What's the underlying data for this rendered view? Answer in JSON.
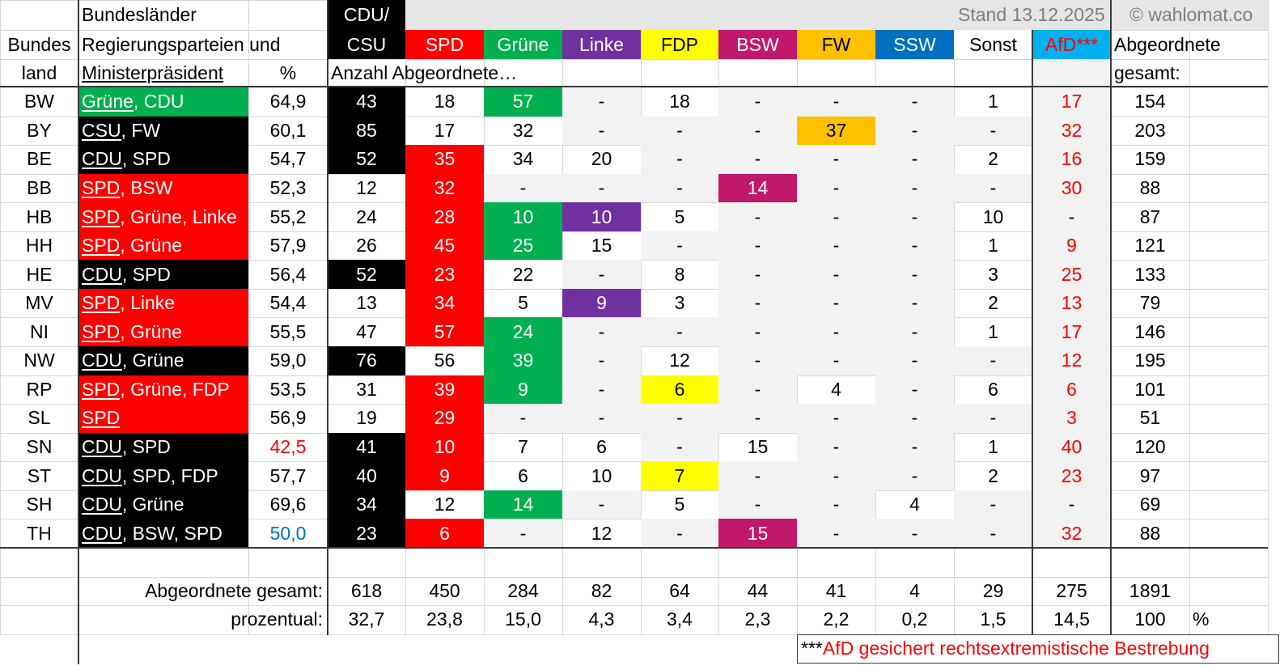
{
  "header": {
    "land": [
      "Bundes",
      "land"
    ],
    "government": [
      "Bundesländer",
      "Regierungsparteien und",
      "Ministerpräsident"
    ],
    "percent": "%",
    "seats": "Anzahl Abgeordnete…",
    "stand": "Stand 13.12.2025",
    "source": "© wahlomat.co",
    "total": [
      "Abgeordnete",
      "gesamt:"
    ]
  },
  "columns": [
    {
      "name": "CDU/",
      "name2": "CSU",
      "color": "#000000",
      "text": "#ffffff"
    },
    {
      "name": "SPD",
      "color": "#ff0000",
      "text": "#ffffff"
    },
    {
      "name": "Grüne",
      "color": "#00b050",
      "text": "#ffffff"
    },
    {
      "name": "Linke",
      "color": "#7030a0",
      "text": "#ffffff"
    },
    {
      "name": "FDP",
      "color": "#ffff00",
      "text": "#000000"
    },
    {
      "name": "BSW",
      "color": "#c0186a",
      "text": "#ffffff"
    },
    {
      "name": "FW",
      "color": "#ffc000",
      "text": "#000000"
    },
    {
      "name": "SSW",
      "color": "#0070c0",
      "text": "#ffffff"
    },
    {
      "name": "Sonst",
      "color": "#ffffff",
      "text": "#000000"
    },
    {
      "name": "AfD***",
      "color": "#00b0f0",
      "text": "#ff0000",
      "value_color": "#ff0000"
    }
  ],
  "rows": [
    {
      "land": "BW",
      "government": "Grüne, CDU",
      "percent": "64,9",
      "seats": [
        43,
        18,
        57,
        "-",
        18,
        "-",
        "-",
        "-",
        1,
        17
      ],
      "total": 154
    },
    {
      "land": "BY",
      "government": "CSU, FW",
      "percent": "60,1",
      "seats": [
        85,
        17,
        32,
        "-",
        "-",
        "-",
        37,
        "-",
        "-",
        32
      ],
      "total": 203
    },
    {
      "land": "BE",
      "government": "CDU, SPD",
      "percent": "54,7",
      "seats": [
        52,
        35,
        34,
        20,
        "-",
        "-",
        "-",
        "-",
        2,
        16
      ],
      "total": 159
    },
    {
      "land": "BB",
      "government": "SPD, BSW",
      "percent": "52,3",
      "seats": [
        12,
        32,
        "-",
        "-",
        "-",
        14,
        "-",
        "-",
        "-",
        30
      ],
      "total": 88
    },
    {
      "land": "HB",
      "government": "SPD, Grüne, Linke",
      "percent": "55,2",
      "seats": [
        24,
        28,
        10,
        10,
        5,
        "-",
        "-",
        "-",
        10,
        "-"
      ],
      "total": 87
    },
    {
      "land": "HH",
      "government": "SPD, Grüne",
      "percent": "57,9",
      "seats": [
        26,
        45,
        25,
        15,
        "-",
        "-",
        "-",
        "-",
        1,
        9
      ],
      "total": 121
    },
    {
      "land": "HE",
      "government": "CDU, SPD",
      "percent": "56,4",
      "seats": [
        52,
        23,
        22,
        "-",
        8,
        "-",
        "-",
        "-",
        3,
        25
      ],
      "total": 133
    },
    {
      "land": "MV",
      "government": "SPD, Linke",
      "percent": "54,4",
      "seats": [
        13,
        34,
        5,
        9,
        3,
        "-",
        "-",
        "-",
        2,
        13
      ],
      "total": 79
    },
    {
      "land": "NI",
      "government": "SPD, Grüne",
      "percent": "55,5",
      "seats": [
        47,
        57,
        24,
        "-",
        "-",
        "-",
        "-",
        "-",
        1,
        17
      ],
      "total": 146
    },
    {
      "land": "NW",
      "government": "CDU, Grüne",
      "percent": "59,0",
      "seats": [
        76,
        56,
        39,
        "-",
        12,
        "-",
        "-",
        "-",
        "-",
        12
      ],
      "total": 195
    },
    {
      "land": "RP",
      "government": "SPD, Grüne, FDP",
      "percent": "53,5",
      "seats": [
        31,
        39,
        9,
        "-",
        6,
        "-",
        4,
        "-",
        6,
        6
      ],
      "total": 101
    },
    {
      "land": "SL",
      "government": "SPD",
      "percent": "56,9",
      "seats": [
        19,
        29,
        "-",
        "-",
        "-",
        "-",
        "-",
        "-",
        "-",
        3
      ],
      "total": 51
    },
    {
      "land": "SN",
      "government": "CDU, SPD",
      "percent": "42,5",
      "percent_color": "#ff0000",
      "seats": [
        41,
        10,
        7,
        6,
        "-",
        15,
        "-",
        "-",
        1,
        40
      ],
      "total": 120
    },
    {
      "land": "ST",
      "government": "CDU, SPD, FDP",
      "percent": "57,7",
      "seats": [
        40,
        9,
        6,
        10,
        7,
        "-",
        "-",
        "-",
        2,
        23
      ],
      "total": 97
    },
    {
      "land": "SH",
      "government": "CDU, Grüne",
      "percent": "69,6",
      "seats": [
        34,
        12,
        14,
        "-",
        5,
        "-",
        "-",
        4,
        "-",
        "-"
      ],
      "total": 69
    },
    {
      "land": "TH",
      "government": "CDU, BSW, SPD",
      "percent": "50,0",
      "percent_color": "#0070c0",
      "seats": [
        23,
        6,
        "-",
        12,
        "-",
        15,
        "-",
        "-",
        "-",
        32
      ],
      "total": 88
    }
  ],
  "totals": {
    "label": "Abgeordnete gesamt:",
    "values": [
      618,
      450,
      284,
      82,
      64,
      44,
      41,
      4,
      29,
      275
    ],
    "total": 1891
  },
  "shares": {
    "label": "prozentual:",
    "values": [
      "32,7",
      "23,8",
      "15,0",
      "4,3",
      "3,4",
      "2,3",
      "2,2",
      "0,2",
      "1,5",
      "14,5"
    ],
    "total": "100",
    "unit": "%"
  },
  "footnote": {
    "marker": "***",
    "text": "AfD gesichert rechtsextremistische Bestrebung"
  }
}
